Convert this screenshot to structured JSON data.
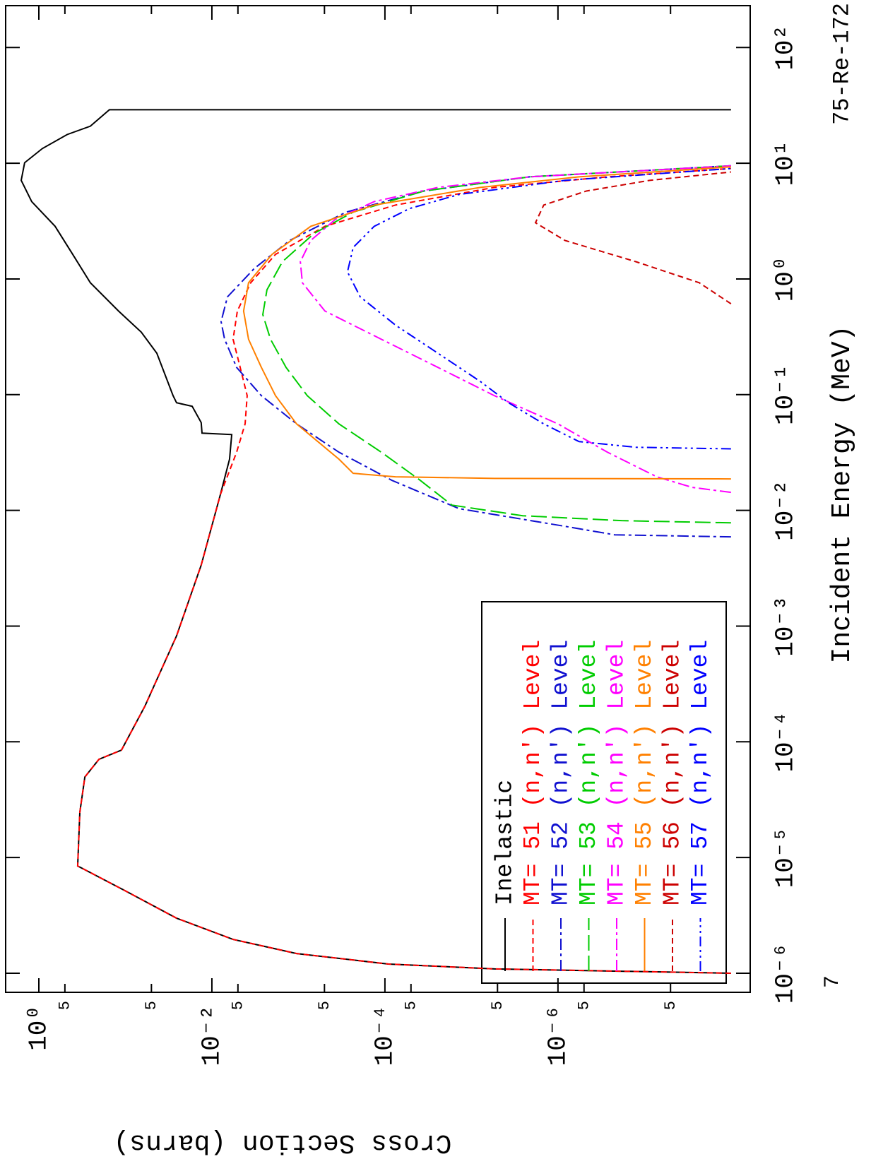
{
  "chart_data": {
    "type": "line",
    "title": "75-Re-172",
    "x_label": "Incident Energy (MeV)",
    "y_label": "Cross Section (barns)",
    "annotation": "7",
    "xscale": "log",
    "yscale": "log",
    "xlim": [
      6.84e-07,
      230
    ],
    "ylim": [
      6e-09,
      2.42
    ],
    "xticks": [
      {
        "value": 1e-06,
        "label": "10⁻⁶"
      },
      {
        "value": 1e-05,
        "label": "10⁻⁵"
      },
      {
        "value": 0.0001,
        "label": "10⁻⁴"
      },
      {
        "value": 0.001,
        "label": "10⁻³"
      },
      {
        "value": 0.01,
        "label": "10⁻²"
      },
      {
        "value": 0.1,
        "label": "10⁻¹"
      },
      {
        "value": 1,
        "label": "10⁰"
      },
      {
        "value": 10,
        "label": "10¹"
      },
      {
        "value": 100,
        "label": "10²"
      }
    ],
    "yticks": [
      {
        "value": 1,
        "label": "10⁰"
      },
      {
        "value": 0.5,
        "label": "5"
      },
      {
        "value": 0.05,
        "label": "5"
      },
      {
        "value": 0.01,
        "label": "10⁻²"
      },
      {
        "value": 0.005,
        "label": "5"
      },
      {
        "value": 0.0005,
        "label": "5"
      },
      {
        "value": 0.0001,
        "label": "10⁻⁴"
      },
      {
        "value": 5e-05,
        "label": "5"
      },
      {
        "value": 5e-06,
        "label": "5"
      },
      {
        "value": 1e-06,
        "label": "10⁻⁶"
      },
      {
        "value": 5e-07,
        "label": "5"
      },
      {
        "value": 5e-08,
        "label": "5"
      }
    ],
    "legend": "lower left",
    "series": [
      {
        "name": "Inelastic",
        "color": "#000000",
        "linestyle": "solid",
        "x": [
          1e-06,
          1.09e-06,
          1.2e-06,
          1.48e-06,
          1.96e-06,
          2.99e-06,
          5.25e-06,
          8.45e-06,
          2.46e-05,
          4.96e-05,
          7.06e-05,
          8.48e-05,
          0.000202,
          0.000824,
          0.00336,
          0.0137,
          0.0277,
          0.0452,
          0.0465,
          0.0574,
          0.0793,
          0.0851,
          0.098,
          0.228,
          0.347,
          0.528,
          0.927,
          1.63,
          2.85,
          4.66,
          7.11,
          10.1,
          13.4,
          17.7,
          20.9,
          29,
          29
        ],
        "values": [
          1e-08,
          5.4e-06,
          9.1e-05,
          0.00105,
          0.0057,
          0.0256,
          0.105,
          0.356,
          0.336,
          0.294,
          0.202,
          0.111,
          0.0597,
          0.0256,
          0.0133,
          0.00798,
          0.00625,
          0.0059,
          0.013,
          0.0133,
          0.0169,
          0.0256,
          0.0281,
          0.0433,
          0.0655,
          0.12,
          0.254,
          0.406,
          0.649,
          1.21,
          1.6,
          1.46,
          0.91,
          0.471,
          0.254,
          0.153,
          1e-08
        ]
      },
      {
        "name": "MT= 51 (n,n') Level",
        "color": "#ff0000",
        "linestyle": "dashed",
        "x": [
          1e-06,
          1.09e-06,
          1.2e-06,
          1.48e-06,
          1.96e-06,
          2.99e-06,
          5.25e-06,
          8.45e-06,
          2.46e-05,
          4.96e-05,
          7.06e-05,
          8.48e-05,
          0.000202,
          0.000824,
          0.00336,
          0.0137,
          0.0318,
          0.056,
          0.098,
          0.172,
          0.301,
          0.528,
          0.927,
          1.63,
          2.85,
          4.35,
          6.18,
          7.63,
          9.0
        ],
        "values": [
          1e-08,
          5.4e-06,
          9.1e-05,
          0.00105,
          0.0057,
          0.0256,
          0.105,
          0.356,
          0.336,
          0.294,
          0.202,
          0.111,
          0.0597,
          0.0256,
          0.0133,
          0.00798,
          0.00518,
          0.00413,
          0.00391,
          0.00471,
          0.00569,
          0.00508,
          0.00356,
          0.00184,
          0.000494,
          7.55e-05,
          5.43e-06,
          2.68e-07,
          1e-08
        ]
      },
      {
        "name": "MT= 52 (n,n') Level",
        "color": "#1010d0",
        "linestyle": "dashdot",
        "x": [
          0.0059,
          0.00615,
          0.00728,
          0.01035,
          0.01815,
          0.0318,
          0.0559,
          0.098,
          0.172,
          0.301,
          0.428,
          0.7,
          1.23,
          2.15,
          3.78,
          5.75,
          7.63,
          9.5
        ],
        "values": [
          1e-08,
          2.22e-07,
          8.3e-07,
          1.39e-05,
          8.28e-05,
          0.00034,
          0.00105,
          0.00268,
          0.00518,
          0.00713,
          0.00783,
          0.00661,
          0.00324,
          0.00126,
          0.000281,
          3.56e-05,
          2.12e-06,
          1e-08
        ]
      },
      {
        "name": "MT= 53 (n,n') Level",
        "color": "#00cc00",
        "linestyle": "longdash",
        "x": [
          0.0078,
          0.00815,
          0.00899,
          0.0111,
          0.01815,
          0.0318,
          0.0559,
          0.098,
          0.172,
          0.301,
          0.492,
          0.805,
          1.41,
          2.48,
          3.78,
          5.75,
          7.63,
          9.5
        ],
        "values": [
          1e-08,
          1.84e-07,
          2.56e-06,
          1.68e-05,
          3.9e-05,
          0.00011,
          0.00034,
          0.00079,
          0.00139,
          0.0021,
          0.00258,
          0.00231,
          0.00153,
          0.000655,
          0.000233,
          3.56e-05,
          2.12e-06,
          1e-08
        ]
      },
      {
        "name": "MT= 54 (n,n') Level",
        "color": "#ff00ff",
        "linestyle": "dashdot",
        "x": [
          0.0143,
          0.0158,
          0.0195,
          0.0318,
          0.0559,
          0.098,
          0.172,
          0.301,
          0.528,
          0.927,
          1.41,
          2.15,
          3.28,
          4.66,
          6.18,
          7.63,
          9.5
        ],
        "values": [
          1e-08,
          2.81e-08,
          7.2e-08,
          2.68e-07,
          1e-06,
          5.43e-06,
          2.44e-05,
          0.00011,
          0.000494,
          0.0009,
          0.00095,
          0.00072,
          0.000373,
          0.000133,
          2.44e-05,
          2.12e-06,
          1e-08
        ]
      },
      {
        "name": "MT= 55 (n,n') Level",
        "color": "#ff8000",
        "linestyle": "solid",
        "x": [
          0.0187,
          0.0189,
          0.0195,
          0.0209,
          0.0277,
          0.0559,
          0.098,
          0.172,
          0.301,
          0.528,
          0.927,
          1.63,
          2.85,
          4.35,
          6.18,
          7.63,
          9.3
        ],
        "values": [
          1e-08,
          5.43e-06,
          7.55e-05,
          0.000233,
          0.00034,
          0.00105,
          0.00184,
          0.00268,
          0.00377,
          0.0043,
          0.00377,
          0.00202,
          0.00072,
          0.000133,
          7.9e-06,
          5.7e-07,
          1e-08
        ]
      },
      {
        "name": "MT= 56 (n,n') Level",
        "color": "#cc0000",
        "linestyle": "dashed",
        "x": [
          0.61,
          0.927,
          1.41,
          2.15,
          3.06,
          4.35,
          5.75,
          7.11,
          8.4
        ],
        "values": [
          1e-08,
          2.33e-08,
          1.26e-07,
          8.3e-07,
          1.82e-06,
          1.46e-06,
          4.7e-07,
          8.7e-08,
          1e-08
        ]
      },
      {
        "name": "MT= 57 (n,n') Level",
        "color": "#0000ff",
        "linestyle": "dashdotdot",
        "x": [
          0.034,
          0.0351,
          0.0393,
          0.0559,
          0.0851,
          0.13,
          0.228,
          0.399,
          0.7,
          1.15,
          1.87,
          2.85,
          4.06,
          5.37,
          7.11,
          9.0
        ],
        "values": [
          1e-08,
          1.26e-07,
          5.7e-07,
          1.46e-06,
          3.72e-06,
          7.9e-06,
          2.44e-05,
          7.55e-05,
          0.000193,
          0.000271,
          0.000233,
          0.000133,
          5.18e-05,
          1.39e-05,
          8.3e-07,
          1e-08
        ]
      }
    ]
  }
}
